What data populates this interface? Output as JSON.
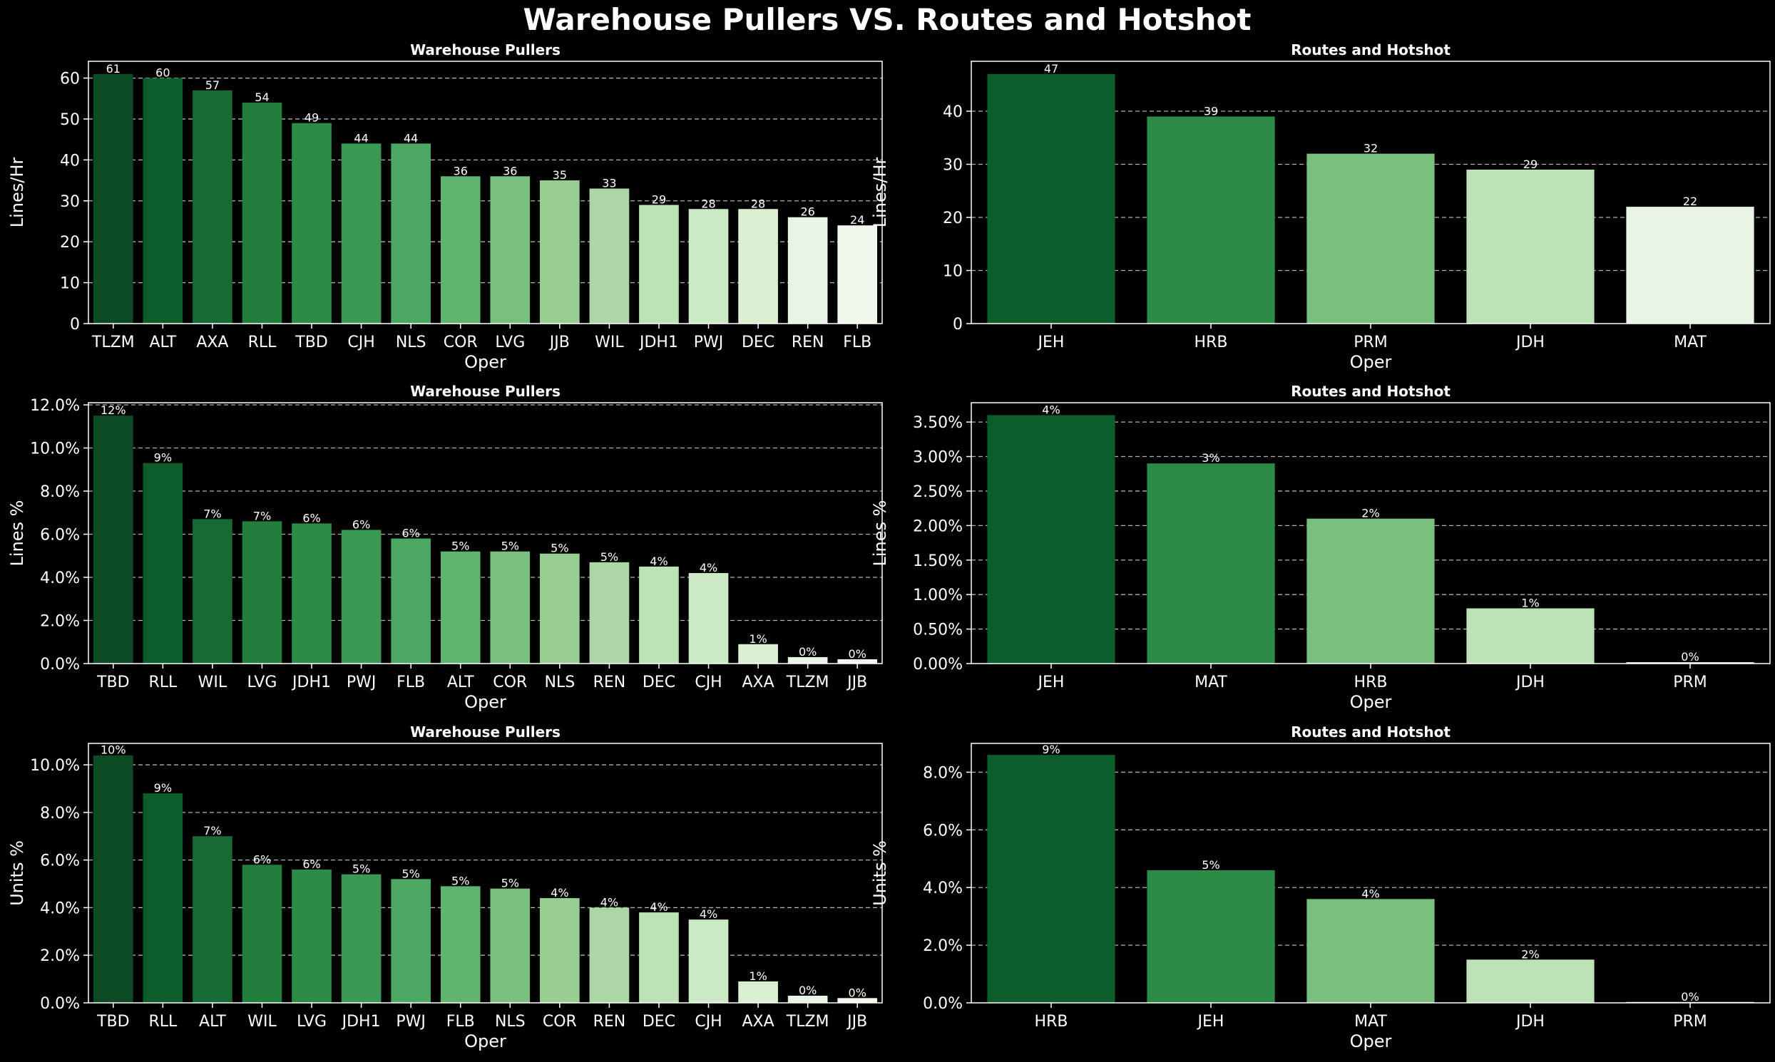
{
  "suptitle": "Warehouse Pullers VS. Routes and Hotshot",
  "palette": [
    "#0b4a22",
    "#0d5c2b",
    "#176a34",
    "#217e3d",
    "#2b8b47",
    "#3a9a55",
    "#4ba863",
    "#61b46f",
    "#7bbf7f",
    "#98ce92",
    "#acd6a6",
    "#bde2b6",
    "#cbe9c4",
    "#d9efd2",
    "#e8f5e4",
    "#f0f9ec"
  ],
  "chart_data": [
    {
      "id": "wp-lines-hr",
      "type": "bar",
      "title": "Warehouse Pullers",
      "xlabel": "Oper",
      "ylabel": "Lines/Hr",
      "categories": [
        "TLZM",
        "ALT",
        "AXA",
        "RLL",
        "TBD",
        "CJH",
        "NLS",
        "COR",
        "LVG",
        "JJB",
        "WIL",
        "JDH1",
        "PWJ",
        "DEC",
        "REN",
        "FLB"
      ],
      "values": [
        61,
        60,
        57,
        54,
        49,
        44,
        44,
        36,
        36,
        35,
        33,
        29,
        28,
        28,
        26,
        24
      ],
      "labels": [
        "61",
        "60",
        "57",
        "54",
        "49",
        "44",
        "44",
        "36",
        "36",
        "35",
        "33",
        "29",
        "28",
        "28",
        "26",
        "24"
      ],
      "ylim": [
        0,
        64.1
      ],
      "yticks": [
        0,
        10,
        20,
        30,
        40,
        50,
        60
      ],
      "ytick_labels": [
        "0",
        "10",
        "20",
        "30",
        "40",
        "50",
        "60"
      ],
      "grid": true
    },
    {
      "id": "rh-lines-hr",
      "type": "bar",
      "title": "Routes and Hotshot",
      "xlabel": "Oper",
      "ylabel": "Lines/Hr",
      "categories": [
        "JEH",
        "HRB",
        "PRM",
        "JDH",
        "MAT"
      ],
      "values": [
        47,
        39,
        32,
        29,
        22
      ],
      "labels": [
        "47",
        "39",
        "32",
        "29",
        "22"
      ],
      "ylim": [
        0,
        49.4
      ],
      "yticks": [
        0,
        10,
        20,
        30,
        40
      ],
      "ytick_labels": [
        "0",
        "10",
        "20",
        "30",
        "40"
      ],
      "grid": true
    },
    {
      "id": "wp-lines-pct",
      "type": "bar",
      "title": "Warehouse Pullers",
      "xlabel": "Oper",
      "ylabel": "Lines %",
      "categories": [
        "TBD",
        "RLL",
        "WIL",
        "LVG",
        "JDH1",
        "PWJ",
        "FLB",
        "ALT",
        "COR",
        "NLS",
        "REN",
        "DEC",
        "CJH",
        "AXA",
        "TLZM",
        "JJB"
      ],
      "values": [
        11.5,
        9.3,
        6.7,
        6.6,
        6.5,
        6.2,
        5.8,
        5.2,
        5.2,
        5.1,
        4.7,
        4.5,
        4.2,
        0.9,
        0.3,
        0.2
      ],
      "labels": [
        "12%",
        "9%",
        "7%",
        "7%",
        "6%",
        "6%",
        "6%",
        "5%",
        "5%",
        "5%",
        "5%",
        "4%",
        "4%",
        "1%",
        "0%",
        "0%"
      ],
      "ylim": [
        0,
        12.1
      ],
      "yticks": [
        0,
        2,
        4,
        6,
        8,
        10,
        12
      ],
      "ytick_labels": [
        "0.0%",
        "2.0%",
        "4.0%",
        "6.0%",
        "8.0%",
        "10.0%",
        "12.0%"
      ],
      "grid": true
    },
    {
      "id": "rh-lines-pct",
      "type": "bar",
      "title": "Routes and Hotshot",
      "xlabel": "Oper",
      "ylabel": "Lines %",
      "categories": [
        "JEH",
        "MAT",
        "HRB",
        "JDH",
        "PRM"
      ],
      "values": [
        3.6,
        2.9,
        2.1,
        0.8,
        0.02
      ],
      "labels": [
        "4%",
        "3%",
        "2%",
        "1%",
        "0%"
      ],
      "ylim": [
        0,
        3.78
      ],
      "yticks": [
        0,
        0.5,
        1,
        1.5,
        2,
        2.5,
        3,
        3.5
      ],
      "ytick_labels": [
        "0.00%",
        "0.50%",
        "1.00%",
        "1.50%",
        "2.00%",
        "2.50%",
        "3.00%",
        "3.50%"
      ],
      "grid": true
    },
    {
      "id": "wp-units-pct",
      "type": "bar",
      "title": "Warehouse Pullers",
      "xlabel": "Oper",
      "ylabel": "Units %",
      "categories": [
        "TBD",
        "RLL",
        "ALT",
        "WIL",
        "LVG",
        "JDH1",
        "PWJ",
        "FLB",
        "NLS",
        "COR",
        "REN",
        "DEC",
        "CJH",
        "AXA",
        "TLZM",
        "JJB"
      ],
      "values": [
        10.4,
        8.8,
        7.0,
        5.8,
        5.6,
        5.4,
        5.2,
        4.9,
        4.8,
        4.4,
        4.0,
        3.8,
        3.5,
        0.9,
        0.3,
        0.2
      ],
      "labels": [
        "10%",
        "9%",
        "7%",
        "6%",
        "6%",
        "5%",
        "5%",
        "5%",
        "5%",
        "4%",
        "4%",
        "4%",
        "4%",
        "1%",
        "0%",
        "0%"
      ],
      "ylim": [
        0,
        10.9
      ],
      "yticks": [
        0,
        2,
        4,
        6,
        8,
        10
      ],
      "ytick_labels": [
        "0.0%",
        "2.0%",
        "4.0%",
        "6.0%",
        "8.0%",
        "10.0%"
      ],
      "grid": true
    },
    {
      "id": "rh-units-pct",
      "type": "bar",
      "title": "Routes and Hotshot",
      "xlabel": "Oper",
      "ylabel": "Units %",
      "categories": [
        "HRB",
        "JEH",
        "MAT",
        "JDH",
        "PRM"
      ],
      "values": [
        8.6,
        4.6,
        3.6,
        1.5,
        0.03
      ],
      "labels": [
        "9%",
        "5%",
        "4%",
        "2%",
        "0%"
      ],
      "ylim": [
        0,
        9.0
      ],
      "yticks": [
        0,
        2,
        4,
        6,
        8
      ],
      "ytick_labels": [
        "0.0%",
        "2.0%",
        "4.0%",
        "6.0%",
        "8.0%"
      ],
      "grid": true
    }
  ]
}
